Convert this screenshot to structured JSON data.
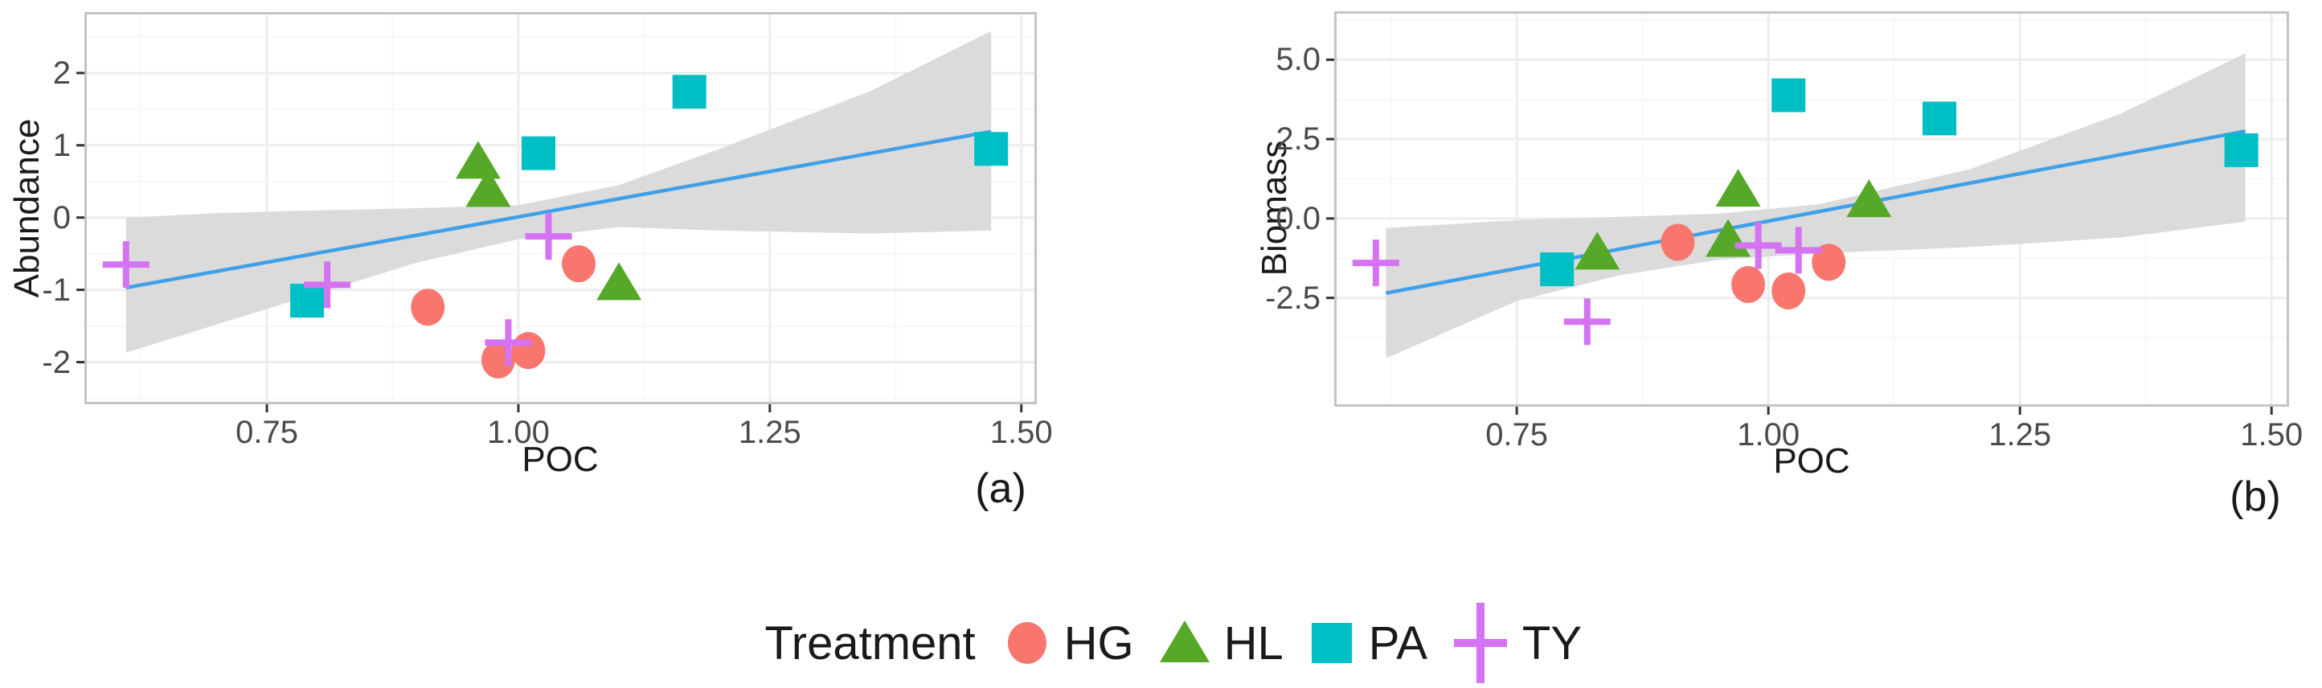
{
  "figure": {
    "background": "#ffffff",
    "panel_label_a": "(a)",
    "panel_label_b": "(b)"
  },
  "colors": {
    "regression_line": "#3FA0E8",
    "ci_band": "#DBDBDB",
    "panel_border": "#C4C4C4",
    "grid_major": "#EDEDED",
    "grid_minor": "#F8F8F8",
    "tick_mark": "#333333",
    "tick_text": "#4a4a4a",
    "title_text": "#1a1a1a"
  },
  "legend": {
    "title": "Treatment",
    "items": [
      {
        "label": "HG",
        "shape": "circle",
        "color": "#F8766D"
      },
      {
        "label": "HL",
        "shape": "triangle",
        "color": "#55A828"
      },
      {
        "label": "PA",
        "shape": "square",
        "color": "#00BFC4"
      },
      {
        "label": "TY",
        "shape": "plus",
        "color": "#D573F2"
      }
    ]
  },
  "chart_data": [
    {
      "type": "scatter",
      "panel": "a",
      "title": "",
      "xlabel": "POC",
      "ylabel": "Abundance",
      "xlim": [
        0.571,
        1.513
      ],
      "ylim": [
        -2.55,
        2.81
      ],
      "grid": true,
      "legend_position": "bottom-shared",
      "x_ticks": {
        "values": [
          0.75,
          1.0,
          1.25,
          1.5
        ],
        "labels": [
          "0.75",
          "1.00",
          "1.25",
          "1.50"
        ]
      },
      "y_ticks": {
        "values": [
          2,
          1,
          0,
          -1,
          -2
        ],
        "labels": [
          "2",
          "1",
          "0",
          "-1",
          "-2"
        ]
      },
      "x_minor": [
        0.625,
        0.875,
        1.125,
        1.375
      ],
      "y_minor": [
        2.5,
        1.5,
        0.5,
        -0.5,
        -1.5,
        -2.5
      ],
      "regression": {
        "x1": 0.61,
        "y1": -0.97,
        "x2": 1.47,
        "y2": 1.19
      },
      "ci_band": {
        "x": [
          0.61,
          0.7,
          0.8,
          0.9,
          1.0,
          1.1,
          1.2,
          1.35,
          1.47
        ],
        "top": [
          0.0,
          0.06,
          0.1,
          0.13,
          0.17,
          0.45,
          0.95,
          1.75,
          2.58
        ],
        "bottom": [
          -1.87,
          -1.48,
          -1.05,
          -0.62,
          -0.3,
          -0.13,
          -0.18,
          -0.22,
          -0.18
        ]
      },
      "series": [
        {
          "name": "HG",
          "shape": "circle",
          "color": "#F8766D",
          "points": [
            [
              0.91,
              -1.24
            ],
            [
              0.98,
              -1.97
            ],
            [
              1.01,
              -1.84
            ],
            [
              1.06,
              -0.64
            ]
          ]
        },
        {
          "name": "HL",
          "shape": "triangle",
          "color": "#55A828",
          "points": [
            [
              0.96,
              0.76
            ],
            [
              0.97,
              0.37
            ],
            [
              1.1,
              -0.92
            ]
          ]
        },
        {
          "name": "PA",
          "shape": "square",
          "color": "#00BFC4",
          "points": [
            [
              0.79,
              -1.15
            ],
            [
              1.02,
              0.89
            ],
            [
              1.17,
              1.74
            ],
            [
              1.47,
              0.95
            ]
          ]
        },
        {
          "name": "TY",
          "shape": "plus",
          "color": "#D573F2",
          "points": [
            [
              0.61,
              -0.65
            ],
            [
              0.81,
              -0.93
            ],
            [
              0.99,
              -1.73
            ],
            [
              1.03,
              -0.26
            ]
          ]
        }
      ]
    },
    {
      "type": "scatter",
      "panel": "b",
      "title": "",
      "xlabel": "POC",
      "ylabel": "Biomass",
      "xlim": [
        0.571,
        1.515
      ],
      "ylim": [
        -5.85,
        6.45
      ],
      "grid": true,
      "legend_position": "bottom-shared",
      "x_ticks": {
        "values": [
          0.75,
          1.0,
          1.25,
          1.5
        ],
        "labels": [
          "0.75",
          "1.00",
          "1.25",
          "1.50"
        ]
      },
      "y_ticks": {
        "values": [
          5.0,
          2.5,
          0.0,
          -2.5
        ],
        "labels": [
          "5.0",
          "2.5",
          "0.0",
          "-2.5"
        ]
      },
      "x_minor": [
        0.625,
        0.875,
        1.125,
        1.375
      ],
      "y_minor": [
        6.25,
        3.75,
        1.25,
        -1.25,
        -3.75
      ],
      "regression": {
        "x1": 0.62,
        "y1": -2.35,
        "x2": 1.474,
        "y2": 2.75
      },
      "ci_band": {
        "x": [
          0.62,
          0.75,
          0.85,
          0.95,
          1.05,
          1.2,
          1.35,
          1.474
        ],
        "top": [
          -0.3,
          -0.05,
          0.05,
          0.15,
          0.45,
          1.55,
          3.3,
          5.2
        ],
        "bottom": [
          -4.4,
          -2.6,
          -1.8,
          -1.3,
          -1.1,
          -0.9,
          -0.6,
          -0.1
        ]
      },
      "series": [
        {
          "name": "HG",
          "shape": "circle",
          "color": "#F8766D",
          "points": [
            [
              0.91,
              -0.75
            ],
            [
              0.98,
              -2.08
            ],
            [
              1.02,
              -2.28
            ],
            [
              1.06,
              -1.38
            ]
          ]
        },
        {
          "name": "HL",
          "shape": "triangle",
          "color": "#55A828",
          "points": [
            [
              0.83,
              -1.1
            ],
            [
              0.96,
              -0.7
            ],
            [
              0.97,
              0.88
            ],
            [
              1.1,
              0.55
            ]
          ]
        },
        {
          "name": "PA",
          "shape": "square",
          "color": "#00BFC4",
          "points": [
            [
              0.79,
              -1.6
            ],
            [
              1.02,
              3.88
            ],
            [
              1.17,
              3.15
            ],
            [
              1.47,
              2.15
            ]
          ]
        },
        {
          "name": "TY",
          "shape": "plus",
          "color": "#D573F2",
          "points": [
            [
              0.61,
              -1.4
            ],
            [
              0.82,
              -3.25
            ],
            [
              0.99,
              -0.85
            ],
            [
              1.03,
              -1.0
            ]
          ]
        }
      ]
    }
  ]
}
